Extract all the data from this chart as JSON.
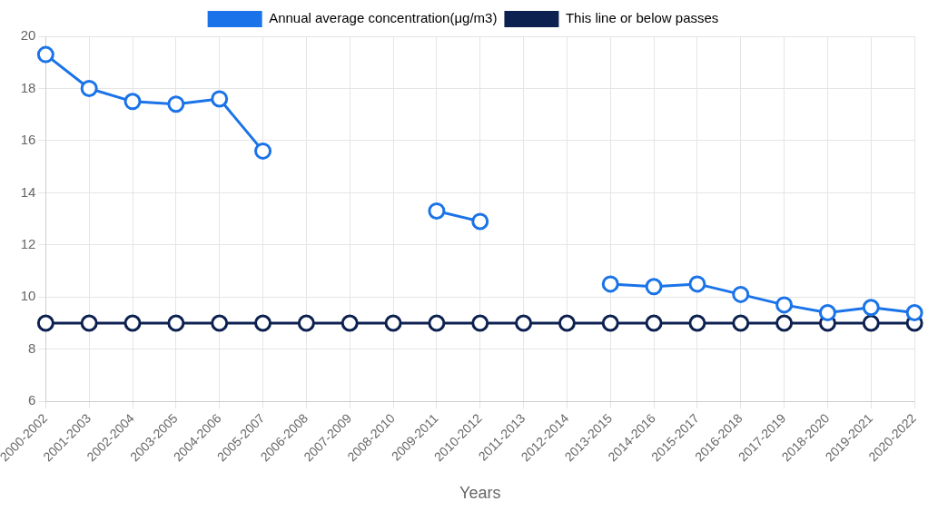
{
  "chart_data": {
    "type": "line",
    "xlabel": "Years",
    "categories": [
      "2000-2002",
      "2001-2003",
      "2002-2004",
      "2003-2005",
      "2004-2006",
      "2005-2007",
      "2006-2008",
      "2007-2009",
      "2008-2010",
      "2009-2011",
      "2010-2012",
      "2011-2013",
      "2012-2014",
      "2013-2015",
      "2014-2016",
      "2015-2017",
      "2016-2018",
      "2017-2019",
      "2018-2020",
      "2019-2021",
      "2020-2022"
    ],
    "series": [
      {
        "name": "Annual average concentration(μg/m3)",
        "color": "#1a73e8",
        "values": [
          19.3,
          18.0,
          17.5,
          17.4,
          17.6,
          15.6,
          null,
          null,
          null,
          13.3,
          12.9,
          null,
          null,
          10.5,
          10.4,
          10.5,
          10.1,
          9.7,
          9.4,
          9.6,
          9.4
        ]
      },
      {
        "name": "This line or below passes",
        "color": "#0d2150",
        "values": [
          9,
          9,
          9,
          9,
          9,
          9,
          9,
          9,
          9,
          9,
          9,
          9,
          9,
          9,
          9,
          9,
          9,
          9,
          9,
          9,
          9
        ]
      }
    ],
    "ylim": [
      6,
      20
    ],
    "yticks": [
      6,
      8,
      10,
      12,
      14,
      16,
      18,
      20
    ],
    "grid": true,
    "legend": "top",
    "marker": "circle",
    "line_style": "solid"
  }
}
